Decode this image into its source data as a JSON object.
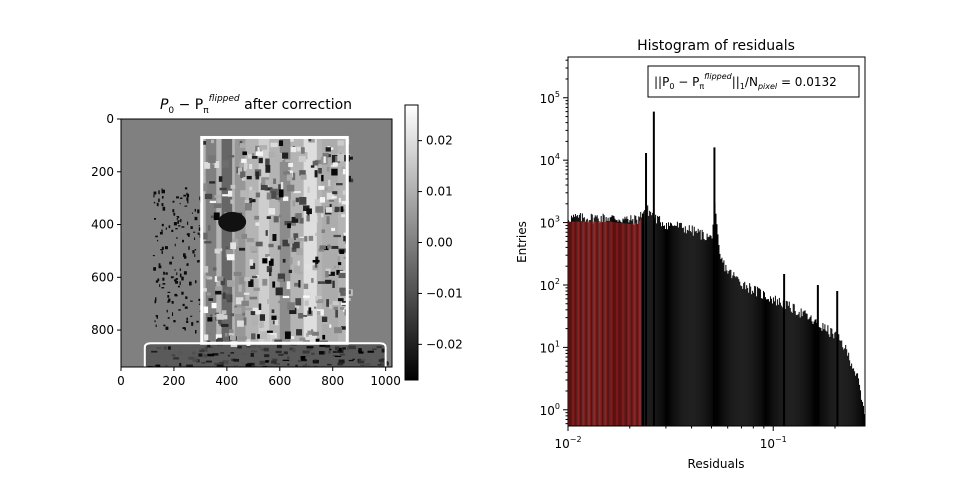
{
  "chart_data": [
    {
      "type": "heatmap",
      "title_main": "P",
      "title_sub0": "0",
      "title_minus": " − P",
      "title_sub_pi": "π",
      "title_sup": "flipped",
      "title_rest": " after correction",
      "xlim": [
        0,
        1024
      ],
      "ylim": [
        940,
        0
      ],
      "x_ticks": [
        0,
        200,
        400,
        600,
        800,
        1000
      ],
      "x_tick_labels": [
        "0",
        "200",
        "400",
        "600",
        "800",
        "1000"
      ],
      "y_ticks": [
        0,
        200,
        400,
        600,
        800
      ],
      "y_tick_labels": [
        "0",
        "200",
        "400",
        "600",
        "800"
      ],
      "colormap": "gray",
      "colorbar": {
        "range": [
          -0.027,
          0.027
        ],
        "ticks": [
          0.02,
          0.01,
          0.0,
          -0.01,
          -0.02
        ],
        "tick_labels": [
          "0.02",
          "0.01",
          "0.00",
          "−0.01",
          "−0.02"
        ]
      },
      "frame_rect": {
        "x0": 305,
        "x1": 855,
        "y0": 70,
        "y1": 850
      },
      "bottom_strip": {
        "x0": 90,
        "x1": 1000,
        "y0": 850,
        "y1": 940
      },
      "colors": {
        "background_gray": "#808080",
        "frame": "#ffffff"
      }
    },
    {
      "type": "bar",
      "title": "Histogram of residuals",
      "xlabel": "Residuals",
      "ylabel": "Entries",
      "xscale": "log",
      "yscale": "log",
      "xlim": [
        0.01,
        0.28
      ],
      "ylim": [
        0.55,
        450000
      ],
      "x_ticks": [
        0.01,
        0.1
      ],
      "x_tick_base": [
        "10",
        "10"
      ],
      "x_tick_exp": [
        "−2",
        "−1"
      ],
      "y_ticks": [
        1,
        10,
        100,
        1000,
        10000,
        100000
      ],
      "y_tick_base": [
        "10",
        "10",
        "10",
        "10",
        "10",
        "10"
      ],
      "y_tick_exp": [
        "0",
        "1",
        "2",
        "3",
        "4",
        "5"
      ],
      "annotation": {
        "pre": "||P",
        "sub0": "0",
        "mid": " − P",
        "sub_pi": "π",
        "sup": "flipped",
        "post": "||",
        "sub1": "1",
        "slash": "/N",
        "sub_pixel": "pixel",
        "value": " = 0.0132"
      },
      "envelope": [
        [
          0.01,
          1200
        ],
        [
          0.012,
          1200
        ],
        [
          0.014,
          1200
        ],
        [
          0.016,
          1200
        ],
        [
          0.018,
          1150
        ],
        [
          0.02,
          1100
        ],
        [
          0.022,
          1150
        ],
        [
          0.024,
          1700
        ],
        [
          0.025,
          1500
        ],
        [
          0.027,
          1150
        ],
        [
          0.03,
          950
        ],
        [
          0.034,
          900
        ],
        [
          0.038,
          800
        ],
        [
          0.042,
          720
        ],
        [
          0.046,
          630
        ],
        [
          0.05,
          560
        ],
        [
          0.052,
          1800
        ],
        [
          0.053,
          900
        ],
        [
          0.055,
          280
        ],
        [
          0.06,
          170
        ],
        [
          0.07,
          110
        ],
        [
          0.08,
          85
        ],
        [
          0.09,
          70
        ],
        [
          0.1,
          60
        ],
        [
          0.12,
          45
        ],
        [
          0.14,
          35
        ],
        [
          0.16,
          25
        ],
        [
          0.18,
          20
        ],
        [
          0.2,
          16
        ],
        [
          0.22,
          11
        ],
        [
          0.24,
          6
        ],
        [
          0.26,
          3
        ],
        [
          0.27,
          1.4
        ],
        [
          0.28,
          0.8
        ]
      ],
      "spikes": [
        {
          "x": 0.0232,
          "y": 1400
        },
        {
          "x": 0.024,
          "y": 13000
        },
        {
          "x": 0.0262,
          "y": 60000
        },
        {
          "x": 0.0517,
          "y": 16000
        },
        {
          "x": 0.113,
          "y": 150
        },
        {
          "x": 0.165,
          "y": 100
        },
        {
          "x": 0.205,
          "y": 80
        }
      ],
      "highlight_range": [
        0.01,
        0.0228
      ],
      "colors": {
        "bars": "#000000",
        "highlight": "#b22222"
      }
    }
  ]
}
